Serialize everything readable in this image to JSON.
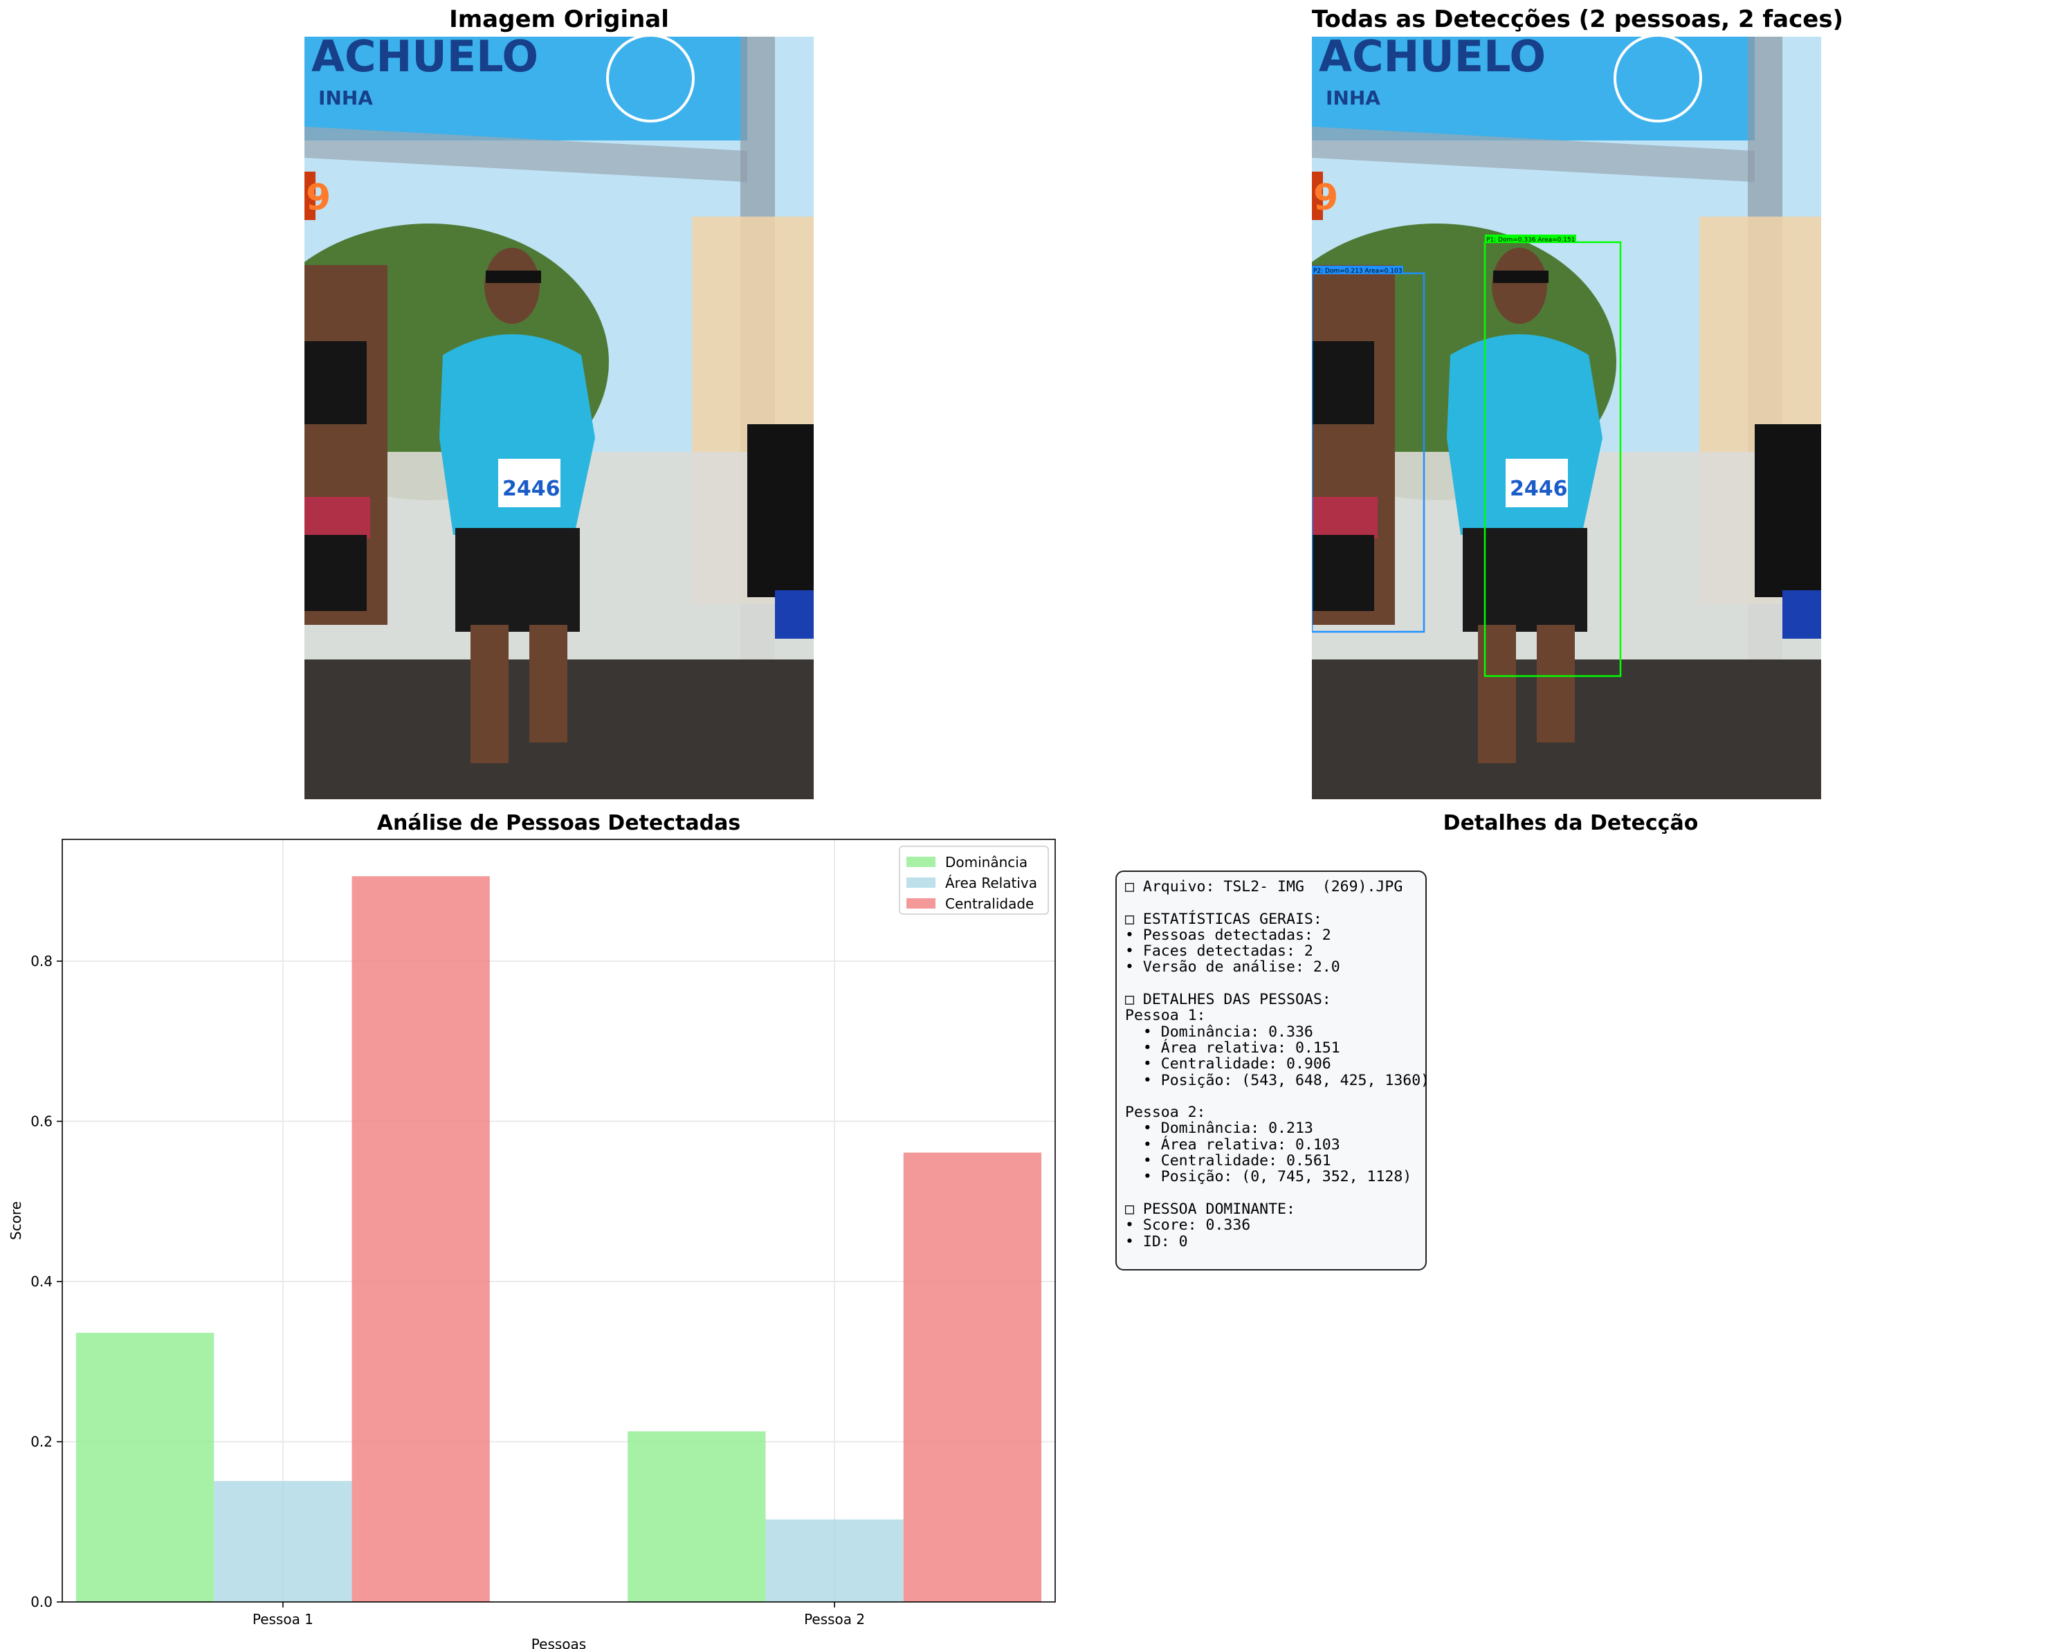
{
  "panels": {
    "original_title": "Imagem Original",
    "detections_title": "Todas as Detecções (2 pessoas, 2 faces)",
    "chart_title": "Análise de Pessoas Detectadas",
    "details_title": "Detalhes da Detecção"
  },
  "photo": {
    "banner_text": "ACHUELO",
    "banner_sub": "INHA",
    "clock_digit": "9",
    "bib_number": "2446",
    "colors": {
      "sky": "#bfe3f5",
      "banner": "#3cb1ec",
      "shirt": "#2bb6e0",
      "skin": "#6b4430",
      "shorts": "#1a1a1a",
      "road": "#3a3634",
      "trees": "#4f7a36",
      "fanny_pack": "#b03048"
    },
    "boxes": [
      {
        "id": "P1",
        "label": "P1: Dom=0.336 Area=0.151",
        "color": "#00ff00"
      },
      {
        "id": "P2",
        "label": "P2: Dom=0.213 Area=0.103",
        "color": "#1e90ff"
      }
    ]
  },
  "details": {
    "lines": [
      "□ Arquivo: TSL2- IMG  (269).JPG",
      "",
      "□ ESTATÍSTICAS GERAIS:",
      "• Pessoas detectadas: 2",
      "• Faces detectadas: 2",
      "• Versão de análise: 2.0",
      "",
      "□ DETALHES DAS PESSOAS:",
      "Pessoa 1:",
      "  • Dominância: 0.336",
      "  • Área relativa: 0.151",
      "  • Centralidade: 0.906",
      "  • Posição: (543, 648, 425, 1360)",
      "",
      "Pessoa 2:",
      "  • Dominância: 0.213",
      "  • Área relativa: 0.103",
      "  • Centralidade: 0.561",
      "  • Posição: (0, 745, 352, 1128)",
      "",
      "□ PESSOA DOMINANTE:",
      "• Score: 0.336",
      "• ID: 0"
    ]
  },
  "chart_data": {
    "type": "bar",
    "title": "Análise de Pessoas Detectadas",
    "xlabel": "Pessoas",
    "ylabel": "Score",
    "categories": [
      "Pessoa 1",
      "Pessoa 2"
    ],
    "series": [
      {
        "name": "Dominância",
        "values": [
          0.336,
          0.213
        ],
        "color": "#90ee90"
      },
      {
        "name": "Área Relativa",
        "values": [
          0.151,
          0.103
        ],
        "color": "#add8e6"
      },
      {
        "name": "Centralidade",
        "values": [
          0.906,
          0.561
        ],
        "color": "#f08080"
      }
    ],
    "ylim": [
      0,
      0.952
    ],
    "yticks": [
      0.0,
      0.2,
      0.4,
      0.6,
      0.8
    ],
    "ytick_labels": [
      "0.0",
      "0.2",
      "0.4",
      "0.6",
      "0.8"
    ],
    "grid": true,
    "legend_position": "upper-right"
  }
}
